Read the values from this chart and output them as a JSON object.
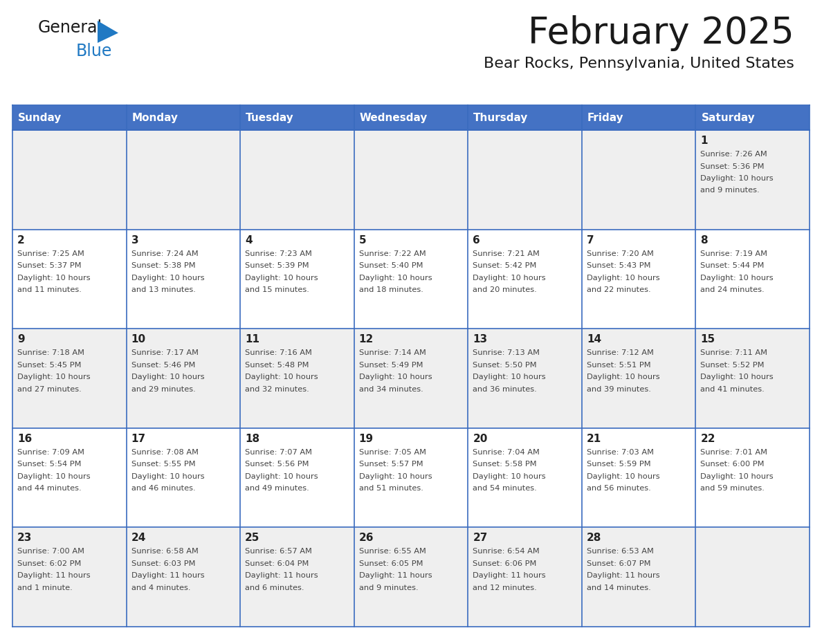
{
  "title": "February 2025",
  "subtitle": "Bear Rocks, Pennsylvania, United States",
  "days_of_week": [
    "Sunday",
    "Monday",
    "Tuesday",
    "Wednesday",
    "Thursday",
    "Friday",
    "Saturday"
  ],
  "header_bg": "#4472C4",
  "header_text_color": "#FFFFFF",
  "cell_bg_odd": "#EFEFEF",
  "cell_bg_even": "#FFFFFF",
  "cell_border_color": "#3A6BBF",
  "day_number_color": "#222222",
  "info_text_color": "#444444",
  "title_color": "#1a1a1a",
  "subtitle_color": "#1a1a1a",
  "logo_general_color": "#1a1a1a",
  "logo_blue_color": "#2079C3",
  "weeks": [
    [
      {
        "day": null,
        "info": ""
      },
      {
        "day": null,
        "info": ""
      },
      {
        "day": null,
        "info": ""
      },
      {
        "day": null,
        "info": ""
      },
      {
        "day": null,
        "info": ""
      },
      {
        "day": null,
        "info": ""
      },
      {
        "day": 1,
        "info": "Sunrise: 7:26 AM\nSunset: 5:36 PM\nDaylight: 10 hours\nand 9 minutes."
      }
    ],
    [
      {
        "day": 2,
        "info": "Sunrise: 7:25 AM\nSunset: 5:37 PM\nDaylight: 10 hours\nand 11 minutes."
      },
      {
        "day": 3,
        "info": "Sunrise: 7:24 AM\nSunset: 5:38 PM\nDaylight: 10 hours\nand 13 minutes."
      },
      {
        "day": 4,
        "info": "Sunrise: 7:23 AM\nSunset: 5:39 PM\nDaylight: 10 hours\nand 15 minutes."
      },
      {
        "day": 5,
        "info": "Sunrise: 7:22 AM\nSunset: 5:40 PM\nDaylight: 10 hours\nand 18 minutes."
      },
      {
        "day": 6,
        "info": "Sunrise: 7:21 AM\nSunset: 5:42 PM\nDaylight: 10 hours\nand 20 minutes."
      },
      {
        "day": 7,
        "info": "Sunrise: 7:20 AM\nSunset: 5:43 PM\nDaylight: 10 hours\nand 22 minutes."
      },
      {
        "day": 8,
        "info": "Sunrise: 7:19 AM\nSunset: 5:44 PM\nDaylight: 10 hours\nand 24 minutes."
      }
    ],
    [
      {
        "day": 9,
        "info": "Sunrise: 7:18 AM\nSunset: 5:45 PM\nDaylight: 10 hours\nand 27 minutes."
      },
      {
        "day": 10,
        "info": "Sunrise: 7:17 AM\nSunset: 5:46 PM\nDaylight: 10 hours\nand 29 minutes."
      },
      {
        "day": 11,
        "info": "Sunrise: 7:16 AM\nSunset: 5:48 PM\nDaylight: 10 hours\nand 32 minutes."
      },
      {
        "day": 12,
        "info": "Sunrise: 7:14 AM\nSunset: 5:49 PM\nDaylight: 10 hours\nand 34 minutes."
      },
      {
        "day": 13,
        "info": "Sunrise: 7:13 AM\nSunset: 5:50 PM\nDaylight: 10 hours\nand 36 minutes."
      },
      {
        "day": 14,
        "info": "Sunrise: 7:12 AM\nSunset: 5:51 PM\nDaylight: 10 hours\nand 39 minutes."
      },
      {
        "day": 15,
        "info": "Sunrise: 7:11 AM\nSunset: 5:52 PM\nDaylight: 10 hours\nand 41 minutes."
      }
    ],
    [
      {
        "day": 16,
        "info": "Sunrise: 7:09 AM\nSunset: 5:54 PM\nDaylight: 10 hours\nand 44 minutes."
      },
      {
        "day": 17,
        "info": "Sunrise: 7:08 AM\nSunset: 5:55 PM\nDaylight: 10 hours\nand 46 minutes."
      },
      {
        "day": 18,
        "info": "Sunrise: 7:07 AM\nSunset: 5:56 PM\nDaylight: 10 hours\nand 49 minutes."
      },
      {
        "day": 19,
        "info": "Sunrise: 7:05 AM\nSunset: 5:57 PM\nDaylight: 10 hours\nand 51 minutes."
      },
      {
        "day": 20,
        "info": "Sunrise: 7:04 AM\nSunset: 5:58 PM\nDaylight: 10 hours\nand 54 minutes."
      },
      {
        "day": 21,
        "info": "Sunrise: 7:03 AM\nSunset: 5:59 PM\nDaylight: 10 hours\nand 56 minutes."
      },
      {
        "day": 22,
        "info": "Sunrise: 7:01 AM\nSunset: 6:00 PM\nDaylight: 10 hours\nand 59 minutes."
      }
    ],
    [
      {
        "day": 23,
        "info": "Sunrise: 7:00 AM\nSunset: 6:02 PM\nDaylight: 11 hours\nand 1 minute."
      },
      {
        "day": 24,
        "info": "Sunrise: 6:58 AM\nSunset: 6:03 PM\nDaylight: 11 hours\nand 4 minutes."
      },
      {
        "day": 25,
        "info": "Sunrise: 6:57 AM\nSunset: 6:04 PM\nDaylight: 11 hours\nand 6 minutes."
      },
      {
        "day": 26,
        "info": "Sunrise: 6:55 AM\nSunset: 6:05 PM\nDaylight: 11 hours\nand 9 minutes."
      },
      {
        "day": 27,
        "info": "Sunrise: 6:54 AM\nSunset: 6:06 PM\nDaylight: 11 hours\nand 12 minutes."
      },
      {
        "day": 28,
        "info": "Sunrise: 6:53 AM\nSunset: 6:07 PM\nDaylight: 11 hours\nand 14 minutes."
      },
      {
        "day": null,
        "info": ""
      }
    ]
  ]
}
